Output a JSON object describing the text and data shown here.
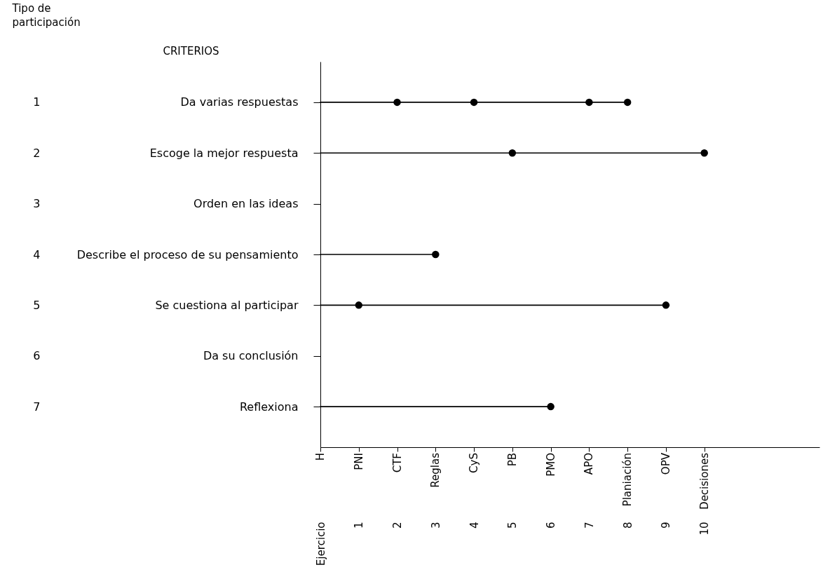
{
  "chart_data": {
    "type": "scatter",
    "orientation": "horizontal",
    "ylabel": "CRITERIOS",
    "y2label": "Tipo de participación",
    "categories": [
      "Da varias respuestas",
      "Escoge la mejor respuesta",
      "Orden en las ideas",
      "Describe el proceso de su pensamiento",
      "Se cuestiona al participar",
      "Da su conclusión",
      "Reflexiona"
    ],
    "y2_categories": [
      "1",
      "2",
      "3",
      "4",
      "5",
      "6",
      "7"
    ],
    "series": [
      {
        "type": "lollipop",
        "color": "#000000",
        "values": [
          8,
          10,
          null,
          3,
          9,
          null,
          6
        ]
      },
      {
        "type": "scatter",
        "color": "#000000",
        "x": [
          "Da varias respuestas",
          "Da varias respuestas",
          "Da varias respuestas",
          "Escoge la mejor respuesta",
          "Se cuestiona al participar"
        ],
        "values": [
          2,
          4,
          7,
          5,
          1
        ]
      }
    ],
    "xlim": [
      0,
      13
    ],
    "xticks": [
      {
        "value": 0,
        "label": "Ejercicio"
      },
      1,
      2,
      3,
      4,
      5,
      6,
      7,
      8,
      9,
      10
    ],
    "annotations": [
      "H",
      "PNI",
      "CTF",
      "Reglas",
      "CyS",
      "PB",
      "PMO",
      "APO",
      "Planiación",
      "OPV",
      "Decisiones"
    ],
    "grid": false,
    "marker": "circle"
  }
}
